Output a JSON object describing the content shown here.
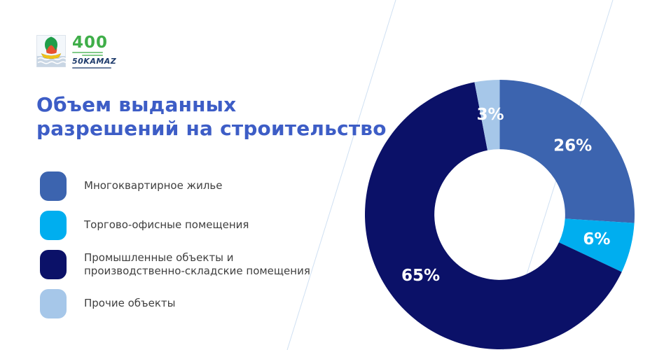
{
  "slide": {
    "title": {
      "line1": "Объем выданных",
      "line2": "разрешений на строительство",
      "color": "#3d5dc6"
    },
    "logos": {
      "coat_of_arms_name": "naberezhnye-chelny-coat-of-arms",
      "anniversary_number": "400",
      "anniversary_green": "#3fae49",
      "kamaz_line": "50KAMAZ",
      "kamaz_navy": "#1d3a6b"
    },
    "legend": {
      "text_color": "#3f3f3f",
      "items": [
        {
          "label": "Многоквартирное жилье",
          "color": "#3c64af"
        },
        {
          "label": "Торгово-офисные помещения",
          "color": "#00aeef"
        },
        {
          "label": "Промышленные объекты и производственно-складские помещения",
          "color": "#0b1168"
        },
        {
          "label": "Прочие объекты",
          "color": "#a6c7e9"
        }
      ]
    },
    "decor": {
      "diagonal_line_color": "#cfe0f2"
    }
  },
  "chart_data": {
    "type": "pie",
    "subtype": "donut",
    "title": "Объем выданных разрешений на строительство",
    "categories": [
      "Многоквартирное жилье",
      "Торгово-офисные помещения",
      "Промышленные объекты и производственно-складские помещения",
      "Прочие объекты"
    ],
    "values": [
      26,
      6,
      65,
      3
    ],
    "data_labels": [
      "26%",
      "6%",
      "65%",
      "3%"
    ],
    "colors": [
      "#3c64af",
      "#00aeef",
      "#0b1168",
      "#a6c7e9"
    ],
    "start_angle_deg": 0,
    "direction": "clockwise",
    "inner_radius_ratio": 0.485,
    "data_label_color": "#ffffff",
    "legend_position": "left",
    "grid": false
  }
}
